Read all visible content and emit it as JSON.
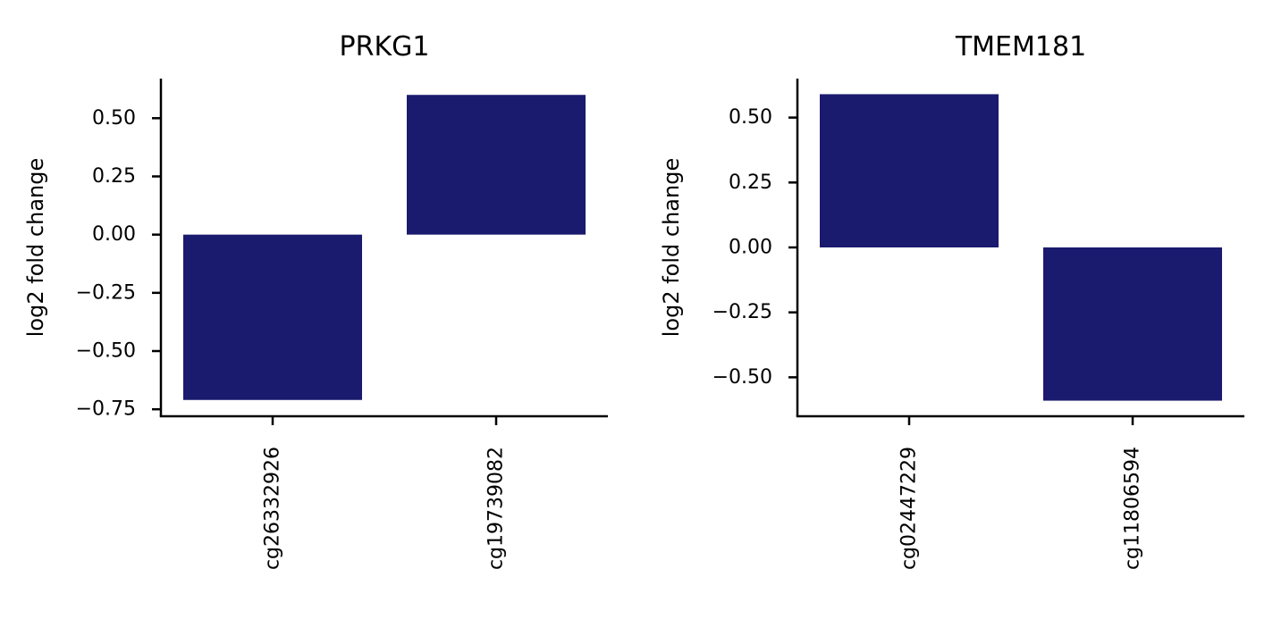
{
  "chart_data": [
    {
      "type": "bar",
      "title": "PRKG1",
      "xlabel": "",
      "ylabel": "log2 fold change",
      "categories": [
        "cg26332926",
        "cg19739082"
      ],
      "values": [
        -0.71,
        0.6
      ],
      "ylim": [
        -0.78,
        0.67
      ],
      "yticks": [
        0.5,
        0.25,
        0.0,
        -0.25,
        -0.5,
        -0.75
      ],
      "ytick_labels": [
        "0.50",
        "0.25",
        "0.00",
        "−0.25",
        "−0.50",
        "−0.75"
      ],
      "bar_color": "#1a1a6e",
      "grid": false
    },
    {
      "type": "bar",
      "title": "TMEM181",
      "xlabel": "",
      "ylabel": "log2 fold change",
      "categories": [
        "cg02447229",
        "cg11806594"
      ],
      "values": [
        0.59,
        -0.59
      ],
      "ylim": [
        -0.65,
        0.65
      ],
      "yticks": [
        0.5,
        0.25,
        0.0,
        -0.25,
        -0.5
      ],
      "ytick_labels": [
        "0.50",
        "0.25",
        "0.00",
        "−0.25",
        "−0.50"
      ],
      "bar_color": "#1a1a6e",
      "grid": false
    }
  ]
}
